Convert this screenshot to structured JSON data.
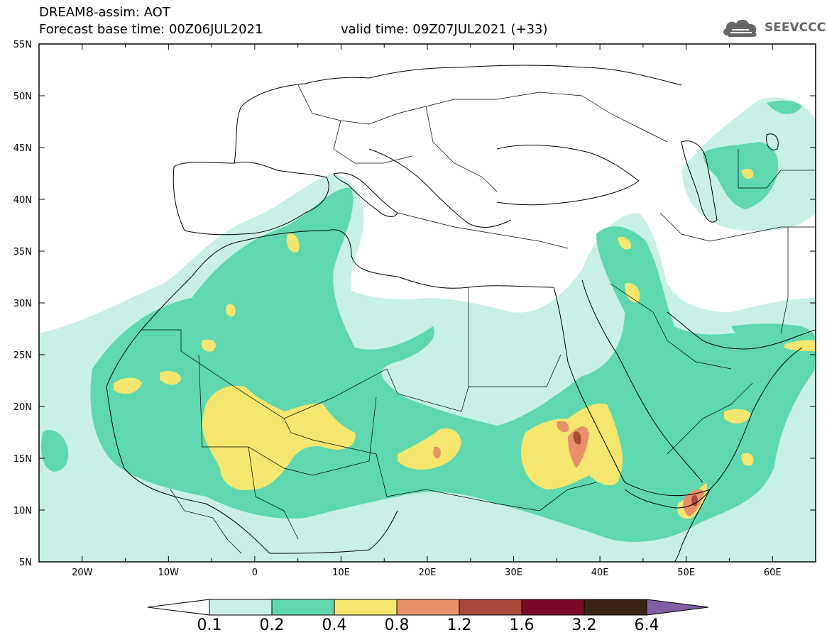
{
  "header": {
    "title_line1": "DREAM8-assim: AOT",
    "title_line2": "Forecast base time: 00Z06JUL2021",
    "valid_time": "valid time: 09Z07JUL2021 (+33)",
    "logo_text": "SEEVCCC"
  },
  "map": {
    "variable": "AOT",
    "lon_range": [
      -25,
      65
    ],
    "lat_range": [
      5,
      55
    ],
    "x_ticks": [
      "20W",
      "10W",
      "0",
      "10E",
      "20E",
      "30E",
      "40E",
      "50E",
      "60E"
    ],
    "y_ticks": [
      "55N",
      "50N",
      "45N",
      "40N",
      "35N",
      "30N",
      "25N",
      "20N",
      "15N",
      "10N",
      "5N"
    ]
  },
  "colorbar": {
    "labels": [
      "0.1",
      "0.2",
      "0.4",
      "0.8",
      "1.2",
      "1.6",
      "3.2",
      "6.4"
    ],
    "colors": [
      "#c8f0e6",
      "#5fd8b0",
      "#f4e66e",
      "#e8906a",
      "#a84a3a",
      "#7a0a2a",
      "#3a2418",
      "#8060a0"
    ]
  },
  "colors": {
    "level_0_1": "#c8f0e6",
    "level_0_2": "#5fd8b0",
    "level_0_4": "#f4e66e",
    "level_0_8": "#e8906a",
    "level_1_2": "#a84a3a"
  }
}
